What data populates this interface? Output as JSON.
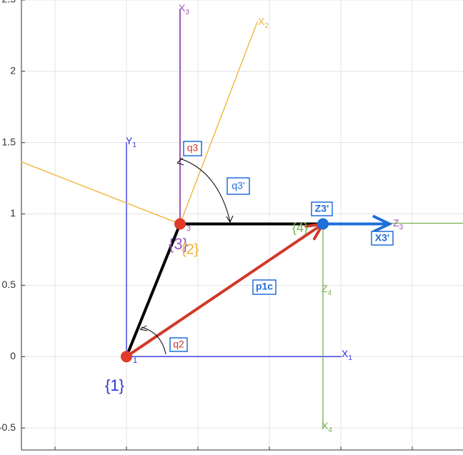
{
  "chart_data": {
    "type": "frames",
    "xlim": [
      -0.735,
      2.355
    ],
    "ylim": [
      -0.655,
      2.5
    ],
    "xticks": [
      -0.5,
      0,
      0.5,
      1,
      1.5,
      2
    ],
    "yticks": [
      -0.5,
      0,
      0.5,
      1,
      1.5,
      2,
      2.5
    ],
    "grid": true,
    "segments": [
      {
        "color": "#3030e0",
        "width": 1.3,
        "x": [
          0,
          0
        ],
        "y": [
          0,
          1.5
        ]
      },
      {
        "color": "#3030e0",
        "width": 1.3,
        "x": [
          0,
          1.5
        ],
        "y": [
          0,
          0
        ]
      },
      {
        "color": "#9b59b6",
        "width": 2,
        "x": [
          0.375,
          0.375
        ],
        "y": [
          0.93,
          2.435
        ]
      },
      {
        "color": "#f0b030",
        "width": 1.3,
        "x": [
          0.375,
          0.915
        ],
        "y": [
          0.93,
          2.345
        ]
      },
      {
        "color": "#f0b030",
        "width": 1.3,
        "x": [
          0.375,
          -0.735
        ],
        "y": [
          0.93,
          1.365
        ]
      },
      {
        "color": "#77b050",
        "width": 1.3,
        "x": [
          1.375,
          2.355
        ],
        "y": [
          0.935,
          0.935
        ]
      },
      {
        "color": "#77b050",
        "width": 1.3,
        "x": [
          1.375,
          1.375
        ],
        "y": [
          0.935,
          -0.5
        ]
      },
      {
        "color": "#000000",
        "width": 4,
        "x": [
          0,
          0.375,
          1.375
        ],
        "y": [
          0,
          0.93,
          0.93
        ]
      },
      {
        "color": "#d03a2a",
        "width": 4,
        "x": [
          0,
          1.375
        ],
        "y": [
          0,
          0.93
        ],
        "arrow": true
      },
      {
        "color": "#1e6fd8",
        "width": 4,
        "x": [
          1.375,
          1.84
        ],
        "y": [
          0.93,
          0.93
        ],
        "arrow": true
      }
    ],
    "points": [
      {
        "color": "#e03a2a",
        "x": 0,
        "y": 0
      },
      {
        "color": "#e03a2a",
        "x": 0.375,
        "y": 0.93
      },
      {
        "color": "#1e6fd8",
        "x": 1.375,
        "y": 0.93
      }
    ],
    "labels": {
      "x3": {
        "text": "X",
        "sub": "3"
      },
      "x2": {
        "text": "X",
        "sub": "2"
      },
      "y1": {
        "text": "Y",
        "sub": "1"
      },
      "q3": "q3",
      "q3p": "q3'",
      "z3p": "Z3'",
      "z3": {
        "text": "Z",
        "sub": "3"
      },
      "x3p": "X3'",
      "f3": "{3}",
      "f2": "{2}",
      "f4": "{4}",
      "p1c": "p1c",
      "z4": {
        "text": "Z",
        "sub": "4"
      },
      "q2": "q2",
      "x1": {
        "text": "X",
        "sub": "1"
      },
      "f1": "{1}",
      "x4": {
        "text": "X",
        "sub": "4"
      },
      "o1": "1",
      "o3": "3"
    }
  }
}
